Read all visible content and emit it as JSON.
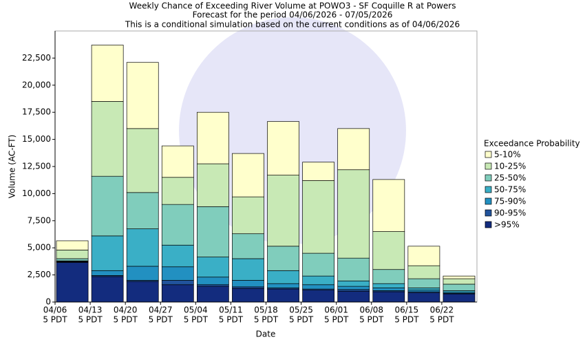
{
  "chart_data": {
    "type": "stacked_bar",
    "title": "Weekly Chance of Exceeding River Volume at POWO3 - SF Coquille R at Powers",
    "subtitle": "Forecast for the period 04/06/2026 - 07/05/2026",
    "note": "This is a conditional simulation based on the current conditions as of 04/06/2026",
    "x_label": "Date",
    "y_label": "Volume (AC-FT)",
    "legend_title": "Exceedance Probability",
    "legend_position": "right",
    "categories": [
      "04/06",
      "04/13",
      "04/20",
      "04/27",
      "05/04",
      "05/11",
      "05/18",
      "05/25",
      "06/01",
      "06/08",
      "06/15",
      "06/22"
    ],
    "category_sublabels": [
      "5 PDT",
      "5 PDT",
      "5 PDT",
      "5 PDT",
      "5 PDT",
      "5 PDT",
      "5 PDT",
      "5 PDT",
      "5 PDT",
      "5 PDT",
      "5 PDT",
      "5 PDT"
    ],
    "series": [
      {
        "name": ">95%",
        "color": "#132c7e",
        "values": [
          3650,
          2350,
          1900,
          1600,
          1450,
          1250,
          1200,
          1100,
          1000,
          950,
          850,
          750
        ]
      },
      {
        "name": "90-95%",
        "color": "#21539c",
        "values": [
          50,
          100,
          100,
          400,
          150,
          150,
          100,
          100,
          150,
          100,
          100,
          50
        ]
      },
      {
        "name": "75-90%",
        "color": "#2290c1",
        "values": [
          50,
          450,
          1300,
          1250,
          700,
          600,
          400,
          400,
          300,
          250,
          150,
          100
        ]
      },
      {
        "name": "50-75%",
        "color": "#3aafc6",
        "values": [
          50,
          3200,
          3450,
          2000,
          1850,
          2000,
          1200,
          800,
          500,
          400,
          200,
          150
        ]
      },
      {
        "name": "25-50%",
        "color": "#80cdbc",
        "values": [
          200,
          5500,
          3350,
          3750,
          4650,
          2300,
          2250,
          2100,
          2100,
          1300,
          850,
          600
        ]
      },
      {
        "name": "10-25%",
        "color": "#c8e9b5",
        "values": [
          800,
          6900,
          5900,
          2500,
          3950,
          3400,
          6550,
          6700,
          8150,
          3500,
          1200,
          500
        ]
      },
      {
        "name": "5-10%",
        "color": "#ffffcc",
        "values": [
          850,
          5200,
          6100,
          2900,
          4750,
          4000,
          4950,
          1700,
          3800,
          4800,
          1800,
          250
        ]
      }
    ],
    "ylim": [
      0,
      25000
    ],
    "yticks": [
      0,
      {
        "value": 2500,
        "label": "2,500"
      },
      {
        "value": 5000,
        "label": "5,000"
      },
      {
        "value": 7500,
        "label": "7,500"
      },
      {
        "value": 10000,
        "label": "10,000"
      },
      {
        "value": 12500,
        "label": "12,500"
      },
      {
        "value": 15000,
        "label": "15,000"
      },
      {
        "value": 17500,
        "label": "17,500"
      },
      {
        "value": 20000,
        "label": "20,000"
      },
      {
        "value": 22500,
        "label": "22,500"
      }
    ]
  }
}
